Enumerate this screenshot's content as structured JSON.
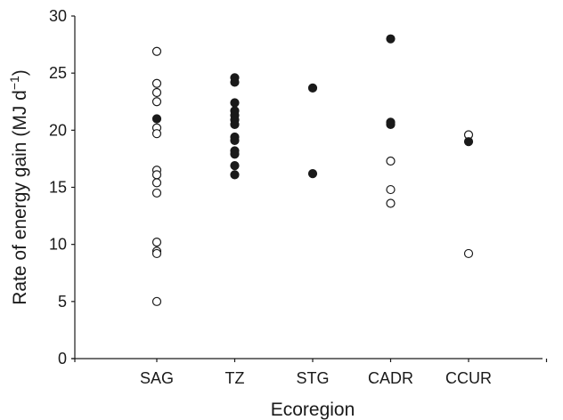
{
  "chart_data": {
    "type": "scatter",
    "xlabel": "Ecoregion",
    "ylabel": "Rate of energy gain (MJ d",
    "ylabel_superscript": "−1",
    "ylabel_close": ")",
    "categories": [
      "SAG",
      "TZ",
      "STG",
      "CADR",
      "CCUR"
    ],
    "ylim": [
      0,
      30
    ],
    "yticks": [
      "0",
      "5",
      "10",
      "15",
      "20",
      "25",
      "30"
    ],
    "grid": false,
    "legend": "none",
    "series": [
      {
        "marker": "open",
        "points": [
          {
            "category": "SAG",
            "y": 26.9
          },
          {
            "category": "SAG",
            "y": 24.1
          },
          {
            "category": "SAG",
            "y": 23.3
          },
          {
            "category": "SAG",
            "y": 22.5
          },
          {
            "category": "SAG",
            "y": 20.2
          },
          {
            "category": "SAG",
            "y": 19.7
          },
          {
            "category": "SAG",
            "y": 16.5
          },
          {
            "category": "SAG",
            "y": 16.1
          },
          {
            "category": "SAG",
            "y": 15.4
          },
          {
            "category": "SAG",
            "y": 14.5
          },
          {
            "category": "SAG",
            "y": 10.2
          },
          {
            "category": "SAG",
            "y": 9.4
          },
          {
            "category": "SAG",
            "y": 9.2
          },
          {
            "category": "SAG",
            "y": 5.0
          },
          {
            "category": "CADR",
            "y": 17.3
          },
          {
            "category": "CADR",
            "y": 14.8
          },
          {
            "category": "CADR",
            "y": 13.6
          },
          {
            "category": "CCUR",
            "y": 19.6
          },
          {
            "category": "CCUR",
            "y": 9.2
          }
        ]
      },
      {
        "marker": "filled",
        "points": [
          {
            "category": "SAG",
            "y": 21.0
          },
          {
            "category": "TZ",
            "y": 24.6
          },
          {
            "category": "TZ",
            "y": 24.2
          },
          {
            "category": "TZ",
            "y": 22.4
          },
          {
            "category": "TZ",
            "y": 21.7
          },
          {
            "category": "TZ",
            "y": 21.3
          },
          {
            "category": "TZ",
            "y": 20.9
          },
          {
            "category": "TZ",
            "y": 20.5
          },
          {
            "category": "TZ",
            "y": 19.4
          },
          {
            "category": "TZ",
            "y": 19.1
          },
          {
            "category": "TZ",
            "y": 18.2
          },
          {
            "category": "TZ",
            "y": 17.9
          },
          {
            "category": "TZ",
            "y": 16.9
          },
          {
            "category": "TZ",
            "y": 16.1
          },
          {
            "category": "STG",
            "y": 23.7
          },
          {
            "category": "STG",
            "y": 16.2
          },
          {
            "category": "CADR",
            "y": 28.0
          },
          {
            "category": "CADR",
            "y": 20.7
          },
          {
            "category": "CADR",
            "y": 20.5
          },
          {
            "category": "CCUR",
            "y": 19.0
          }
        ]
      }
    ]
  }
}
